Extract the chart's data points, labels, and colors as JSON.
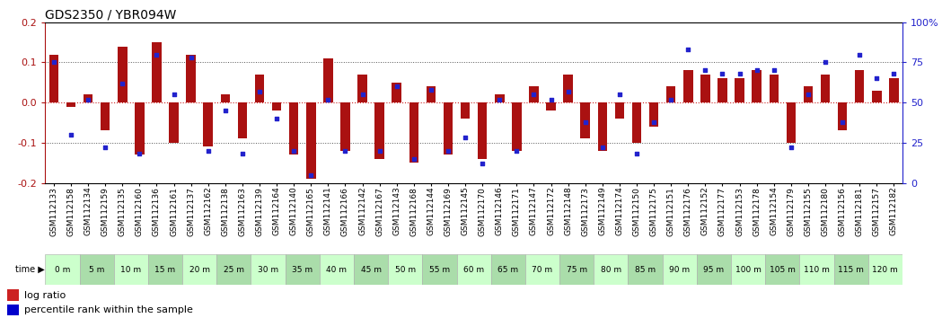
{
  "title": "GDS2350 / YBR094W",
  "xlabels": [
    "GSM112133",
    "GSM112158",
    "GSM112134",
    "GSM112159",
    "GSM112135",
    "GSM112160",
    "GSM112136",
    "GSM112161",
    "GSM112137",
    "GSM112162",
    "GSM112138",
    "GSM112163",
    "GSM112139",
    "GSM112164",
    "GSM112140",
    "GSM112165",
    "GSM112141",
    "GSM112166",
    "GSM112142",
    "GSM112167",
    "GSM112143",
    "GSM112168",
    "GSM112144",
    "GSM112169",
    "GSM112145",
    "GSM112170",
    "GSM112146",
    "GSM112171",
    "GSM112147",
    "GSM112172",
    "GSM112148",
    "GSM112173",
    "GSM112149",
    "GSM112174",
    "GSM112150",
    "GSM112175",
    "GSM112151",
    "GSM112176",
    "GSM112152",
    "GSM112177",
    "GSM112153",
    "GSM112178",
    "GSM112154",
    "GSM112179",
    "GSM112155",
    "GSM112180",
    "GSM112156",
    "GSM112181",
    "GSM112157",
    "GSM112182"
  ],
  "time_labels": [
    "0 m",
    "5 m",
    "10 m",
    "15 m",
    "20 m",
    "25 m",
    "30 m",
    "35 m",
    "40 m",
    "45 m",
    "50 m",
    "55 m",
    "60 m",
    "65 m",
    "70 m",
    "75 m",
    "80 m",
    "85 m",
    "90 m",
    "95 m",
    "100 m",
    "105 m",
    "110 m",
    "115 m",
    "120 m"
  ],
  "log_ratio": [
    0.12,
    -0.01,
    0.02,
    -0.07,
    0.14,
    -0.13,
    0.15,
    -0.1,
    0.12,
    -0.11,
    0.02,
    -0.09,
    0.07,
    -0.02,
    -0.13,
    -0.19,
    0.11,
    -0.12,
    0.07,
    -0.14,
    0.05,
    -0.15,
    0.04,
    -0.13,
    -0.04,
    -0.14,
    0.02,
    -0.12,
    0.04,
    -0.02,
    0.07,
    -0.09,
    -0.12,
    -0.04,
    -0.1,
    -0.06,
    0.04,
    0.08,
    0.07,
    0.06,
    0.06,
    0.08,
    0.07,
    -0.1,
    0.04,
    0.07,
    -0.07,
    0.08,
    0.03,
    0.06
  ],
  "percentile": [
    75,
    30,
    52,
    22,
    62,
    18,
    80,
    55,
    78,
    20,
    45,
    18,
    57,
    40,
    20,
    5,
    52,
    20,
    55,
    20,
    60,
    15,
    58,
    20,
    28,
    12,
    52,
    20,
    55,
    52,
    57,
    38,
    22,
    55,
    18,
    38,
    52,
    83,
    70,
    68,
    68,
    70,
    70,
    22,
    55,
    75,
    38,
    80,
    65,
    68
  ],
  "ylim_left": [
    -0.2,
    0.2
  ],
  "ylim_right": [
    0,
    100
  ],
  "bar_color": "#aa1111",
  "dot_color": "#2222cc",
  "bg_color": "#ffffff",
  "dotted_line_color": "#555555",
  "zero_line_color": "#cc2222",
  "title_fontsize": 10,
  "tick_label_fontsize": 6.5,
  "time_colors": [
    "#ccffcc",
    "#aaddaa"
  ],
  "bar_width": 0.55,
  "legend_bar_color": "#cc2222",
  "legend_dot_color": "#0000cc"
}
